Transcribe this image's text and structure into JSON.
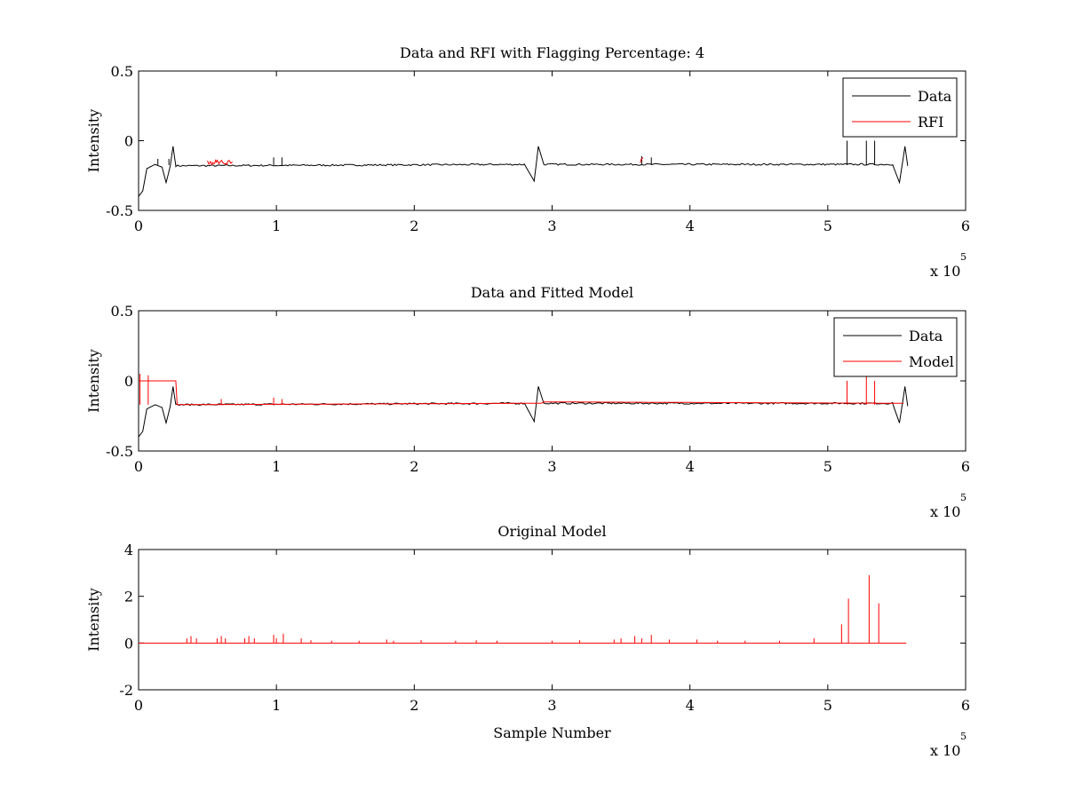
{
  "chart_data": [
    {
      "type": "line",
      "title": "Data and RFI with Flagging Percentage: 4",
      "xlabel": "",
      "ylabel": "Intensity",
      "xlim": [
        0,
        600000
      ],
      "ylim": [
        -0.5,
        0.5
      ],
      "xticks": [
        0,
        1,
        2,
        3,
        4,
        5,
        6
      ],
      "yticks": [
        0.5,
        0,
        -0.5
      ],
      "xtick_labels": [
        "0",
        "1",
        "2",
        "3",
        "4",
        "5",
        "6"
      ],
      "ytick_labels": [
        "0.5",
        "0",
        "-0.5"
      ],
      "x_multiplier": "x 10",
      "x_multiplier_exp": "5",
      "legend_position": "top-right",
      "grid": false,
      "series": [
        {
          "name": "Data",
          "color": "#000000",
          "baseline": -0.175,
          "points": [
            [
              0,
              -0.4
            ],
            [
              3000,
              -0.36
            ],
            [
              6000,
              -0.2
            ],
            [
              12000,
              -0.17
            ],
            [
              17000,
              -0.19
            ],
            [
              20000,
              -0.3
            ],
            [
              23000,
              -0.18
            ],
            [
              25000,
              -0.04
            ],
            [
              27000,
              -0.18
            ],
            [
              280000,
              -0.17
            ],
            [
              287000,
              -0.29
            ],
            [
              290000,
              -0.04
            ],
            [
              294000,
              -0.17
            ],
            [
              547000,
              -0.17
            ],
            [
              552000,
              -0.3
            ],
            [
              556000,
              -0.04
            ],
            [
              558000,
              -0.18
            ]
          ],
          "spikes": [
            [
              14000,
              -0.13
            ],
            [
              22000,
              -0.13
            ],
            [
              98000,
              -0.12
            ],
            [
              104000,
              -0.12
            ],
            [
              365000,
              -0.11
            ],
            [
              372000,
              -0.12
            ],
            [
              514000,
              0.0
            ],
            [
              528000,
              0.0
            ],
            [
              534000,
              0.0
            ]
          ]
        },
        {
          "name": "RFI",
          "color": "#ff0000",
          "ranges": [
            [
              50000,
              68000,
              -0.13
            ],
            [
              364000,
              366000,
              -0.11
            ]
          ]
        }
      ]
    },
    {
      "type": "line",
      "title": "Data and Fitted Model",
      "xlabel": "",
      "ylabel": "Intensity",
      "xlim": [
        0,
        600000
      ],
      "ylim": [
        -0.5,
        0.5
      ],
      "xticks": [
        0,
        1,
        2,
        3,
        4,
        5,
        6
      ],
      "yticks": [
        0.5,
        0,
        -0.5
      ],
      "xtick_labels": [
        "0",
        "1",
        "2",
        "3",
        "4",
        "5",
        "6"
      ],
      "ytick_labels": [
        "0.5",
        "0",
        "-0.5"
      ],
      "x_multiplier": "x 10",
      "x_multiplier_exp": "5",
      "legend_position": "top-right",
      "grid": false,
      "series": [
        {
          "name": "Data",
          "color": "#000000",
          "baseline": -0.165,
          "points": [
            [
              0,
              -0.4
            ],
            [
              3000,
              -0.36
            ],
            [
              6000,
              -0.2
            ],
            [
              12000,
              -0.17
            ],
            [
              17000,
              -0.19
            ],
            [
              20000,
              -0.3
            ],
            [
              23000,
              -0.18
            ],
            [
              25000,
              -0.04
            ],
            [
              27000,
              -0.17
            ],
            [
              280000,
              -0.16
            ],
            [
              287000,
              -0.29
            ],
            [
              290000,
              -0.04
            ],
            [
              294000,
              -0.16
            ],
            [
              547000,
              -0.16
            ],
            [
              552000,
              -0.3
            ],
            [
              556000,
              -0.04
            ],
            [
              558000,
              -0.18
            ]
          ]
        },
        {
          "name": "Model",
          "color": "#ff0000",
          "points": [
            [
              0,
              0.0
            ],
            [
              27000,
              0.0
            ],
            [
              28000,
              -0.17
            ],
            [
              280000,
              -0.16
            ],
            [
              283000,
              -0.16
            ],
            [
              292000,
              -0.16
            ],
            [
              294000,
              -0.15
            ],
            [
              555000,
              -0.16
            ]
          ],
          "spikes": [
            [
              1000,
              0.05
            ],
            [
              7000,
              0.04
            ],
            [
              60000,
              -0.13
            ],
            [
              98000,
              -0.12
            ],
            [
              104000,
              -0.13
            ],
            [
              514000,
              0.0
            ],
            [
              528000,
              0.2
            ],
            [
              534000,
              0.0
            ]
          ]
        }
      ]
    },
    {
      "type": "line",
      "title": "Original Model",
      "xlabel": "Sample Number",
      "ylabel": "Intensity",
      "xlim": [
        0,
        600000
      ],
      "ylim": [
        -2,
        4
      ],
      "xticks": [
        0,
        1,
        2,
        3,
        4,
        5,
        6
      ],
      "yticks": [
        4,
        2,
        0,
        -2
      ],
      "xtick_labels": [
        "0",
        "1",
        "2",
        "3",
        "4",
        "5",
        "6"
      ],
      "ytick_labels": [
        "4",
        "2",
        "0",
        "-2"
      ],
      "x_multiplier": "x 10",
      "x_multiplier_exp": "5",
      "grid": false,
      "series": [
        {
          "name": "",
          "color": "#ff0000",
          "baseline": 0,
          "x_end": 557000,
          "spikes": [
            [
              35000,
              0.2
            ],
            [
              38000,
              0.3
            ],
            [
              42000,
              0.2
            ],
            [
              57000,
              0.2
            ],
            [
              60000,
              0.3
            ],
            [
              63000,
              0.2
            ],
            [
              77000,
              0.2
            ],
            [
              80000,
              0.3
            ],
            [
              84000,
              0.2
            ],
            [
              98000,
              0.35
            ],
            [
              100000,
              0.2
            ],
            [
              105000,
              0.4
            ],
            [
              118000,
              0.2
            ],
            [
              125000,
              0.12
            ],
            [
              140000,
              0.1
            ],
            [
              160000,
              0.1
            ],
            [
              180000,
              0.15
            ],
            [
              185000,
              0.1
            ],
            [
              205000,
              0.12
            ],
            [
              230000,
              0.1
            ],
            [
              245000,
              0.12
            ],
            [
              260000,
              0.1
            ],
            [
              300000,
              0.1
            ],
            [
              320000,
              0.12
            ],
            [
              345000,
              0.15
            ],
            [
              350000,
              0.2
            ],
            [
              360000,
              0.3
            ],
            [
              365000,
              0.2
            ],
            [
              372000,
              0.35
            ],
            [
              385000,
              0.15
            ],
            [
              405000,
              0.15
            ],
            [
              420000,
              0.1
            ],
            [
              440000,
              0.1
            ],
            [
              465000,
              0.1
            ],
            [
              490000,
              0.2
            ],
            [
              510000,
              0.8
            ],
            [
              515000,
              1.9
            ],
            [
              530000,
              2.9
            ],
            [
              537000,
              1.7
            ]
          ]
        }
      ]
    }
  ]
}
